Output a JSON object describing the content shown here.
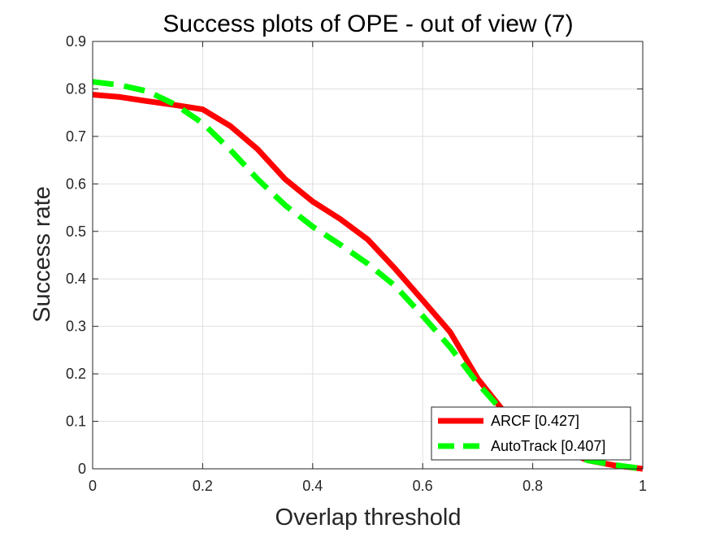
{
  "chart_data": {
    "type": "line",
    "title": "Success plots of OPE - out of view (7)",
    "xlabel": "Overlap threshold",
    "ylabel": "Success rate",
    "xlim": [
      0,
      1
    ],
    "ylim": [
      0,
      0.9
    ],
    "xticks": [
      0,
      0.2,
      0.4,
      0.6,
      0.8,
      1
    ],
    "xtick_labels": [
      "0",
      "0.2",
      "0.4",
      "0.6",
      "0.8",
      "1"
    ],
    "yticks": [
      0,
      0.1,
      0.2,
      0.3,
      0.4,
      0.5,
      0.6,
      0.7,
      0.8,
      0.9
    ],
    "ytick_labels": [
      "0",
      "0.1",
      "0.2",
      "0.3",
      "0.4",
      "0.5",
      "0.6",
      "0.7",
      "0.8",
      "0.9"
    ],
    "grid": true,
    "legend_position": "bottom-right",
    "series": [
      {
        "name": "ARCF [0.427]",
        "color": "#ff0000",
        "dash": "solid",
        "x": [
          0,
          0.05,
          0.1,
          0.15,
          0.2,
          0.25,
          0.3,
          0.35,
          0.4,
          0.45,
          0.5,
          0.55,
          0.6,
          0.65,
          0.7,
          0.75,
          0.8,
          0.85,
          0.9,
          0.95,
          1
        ],
        "y": [
          0.788,
          0.783,
          0.774,
          0.766,
          0.757,
          0.722,
          0.673,
          0.61,
          0.563,
          0.526,
          0.483,
          0.421,
          0.355,
          0.288,
          0.19,
          0.117,
          0.073,
          0.041,
          0.018,
          0.007,
          0.0
        ]
      },
      {
        "name": "AutoTrack [0.407]",
        "color": "#00ff00",
        "dash": "dashed",
        "x": [
          0,
          0.05,
          0.1,
          0.15,
          0.2,
          0.25,
          0.3,
          0.35,
          0.4,
          0.45,
          0.5,
          0.55,
          0.6,
          0.65,
          0.7,
          0.75,
          0.8,
          0.85,
          0.9,
          0.95,
          1
        ],
        "y": [
          0.815,
          0.808,
          0.795,
          0.767,
          0.728,
          0.672,
          0.61,
          0.555,
          0.51,
          0.472,
          0.432,
          0.385,
          0.322,
          0.256,
          0.18,
          0.115,
          0.072,
          0.04,
          0.018,
          0.008,
          0.0
        ]
      }
    ]
  }
}
